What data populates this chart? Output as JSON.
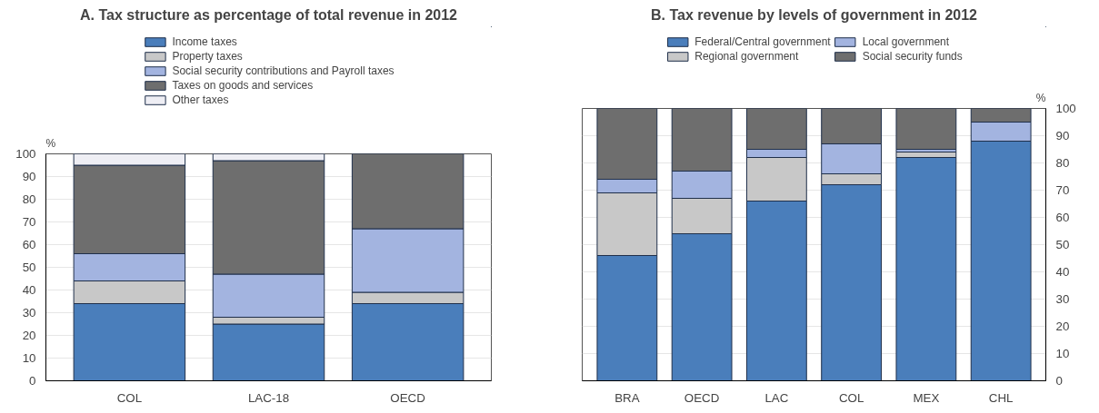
{
  "chart_data": [
    {
      "type": "bar",
      "stacked": true,
      "title": "A. Tax structure as percentage of total revenue in 2012",
      "ylabel": "%",
      "categories": [
        "COL",
        "LAC-18",
        "OECD"
      ],
      "ylim": [
        0,
        100
      ],
      "yticks": [
        0,
        10,
        20,
        30,
        40,
        50,
        60,
        70,
        80,
        90,
        100
      ],
      "grid": "y",
      "legend": "top",
      "series": [
        {
          "name": "Income taxes",
          "color": "#4a7ebb",
          "values": [
            34,
            25,
            34
          ]
        },
        {
          "name": "Property taxes",
          "color": "#c8c8c8",
          "values": [
            10,
            3,
            5
          ]
        },
        {
          "name": "Social security contributions and Payroll taxes",
          "color": "#a3b4e0",
          "values": [
            12,
            19,
            28
          ]
        },
        {
          "name": "Taxes on goods and services",
          "color": "#6e6e6e",
          "values": [
            39,
            50,
            33
          ]
        },
        {
          "name": "Other taxes",
          "color": "#eeeef4",
          "values": [
            5,
            3,
            0
          ]
        }
      ]
    },
    {
      "type": "bar",
      "stacked": true,
      "title": "B. Tax revenue by levels of government in 2012",
      "ylabel": "%",
      "categories": [
        "BRA",
        "OECD",
        "LAC",
        "COL",
        "MEX",
        "CHL"
      ],
      "ylim": [
        0,
        100
      ],
      "yticks": [
        0,
        10,
        20,
        30,
        40,
        50,
        60,
        70,
        80,
        90,
        100
      ],
      "grid": "y",
      "legend": "top",
      "series": [
        {
          "name": "Federal/Central government",
          "color": "#4a7ebb",
          "values": [
            46,
            54,
            66,
            72,
            82,
            88
          ]
        },
        {
          "name": "Regional government",
          "color": "#c8c8c8",
          "values": [
            23,
            13,
            16,
            4,
            2,
            0
          ]
        },
        {
          "name": "Local government",
          "color": "#a3b4e0",
          "values": [
            5,
            10,
            3,
            11,
            1,
            7
          ]
        },
        {
          "name": "Social security funds",
          "color": "#6e6e6e",
          "values": [
            26,
            23,
            15,
            13,
            15,
            5
          ]
        }
      ]
    }
  ]
}
